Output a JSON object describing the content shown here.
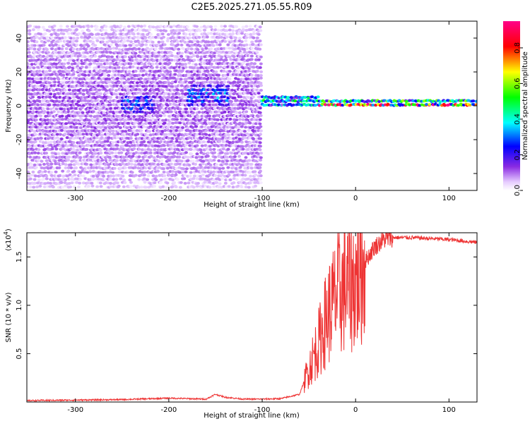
{
  "title": "C2E5.2025.271.05.55.R09",
  "top_panel": {
    "xlabel": "Height of straight line (km)",
    "ylabel": "Frequency (Hz)",
    "x_ticks": [
      "-300",
      "-200",
      "-100",
      "0",
      "100"
    ],
    "y_ticks": [
      "40",
      "20",
      "0",
      "-20",
      "-40"
    ],
    "colorbar": {
      "label": "Normalized spectral amplitude",
      "ticks": [
        "0.0",
        "0.2",
        "0.4",
        "0.6",
        "0.8"
      ],
      "colormap": [
        "#ffffff",
        "#8a2be2",
        "#0000ff",
        "#00ffff",
        "#00ff00",
        "#ffff00",
        "#ff0000",
        "#ff0088"
      ]
    }
  },
  "bottom_panel": {
    "xlabel": "Height of straight line (km)",
    "ylabel": "SNR (10 * v/v)",
    "multiplier": "(x10",
    "multiplier_exp": "4",
    "multiplier_close": ")",
    "x_ticks": [
      "-300",
      "-200",
      "-100",
      "0",
      "100"
    ],
    "y_ticks": [
      "1.5",
      "1.0",
      "0.5"
    ],
    "line_color": "#ee3333"
  },
  "chart_data": [
    {
      "type": "heatmap",
      "title": "C2E5.2025.271.05.55.R09",
      "xlabel": "Height of straight line (km)",
      "ylabel": "Frequency (Hz)",
      "xlim": [
        -352,
        130
      ],
      "ylim": [
        -50,
        50
      ],
      "z_label": "Normalized spectral amplitude",
      "z_range": [
        0.0,
        0.95
      ],
      "features": [
        {
          "x_range": [
            -352,
            -100
          ],
          "freq_center": 0,
          "freq_halfwidth": 48,
          "amplitude": 0.1
        },
        {
          "x_range": [
            -250,
            -215
          ],
          "freq_center": 1,
          "freq_halfwidth": 6,
          "amplitude": 0.25
        },
        {
          "x_range": [
            -180,
            -135
          ],
          "freq_center": 6,
          "freq_halfwidth": 6,
          "amplitude": 0.28
        },
        {
          "x_range": [
            -100,
            -40
          ],
          "freq_center": 3,
          "freq_halfwidth": 4,
          "amplitude": 0.4
        },
        {
          "x_range": [
            -40,
            130
          ],
          "freq_center": 1,
          "freq_halfwidth": 2,
          "amplitude": 0.75
        },
        {
          "x_range": [
            90,
            100
          ],
          "freq_center": 1,
          "freq_halfwidth": 2,
          "amplitude": 0.9
        }
      ]
    },
    {
      "type": "line",
      "xlabel": "Height of straight line (km)",
      "ylabel": "SNR (10 * v/v)",
      "xlim": [
        -352,
        130
      ],
      "ylim": [
        0,
        17500
      ],
      "x": [
        -352,
        -300,
        -250,
        -200,
        -160,
        -150,
        -140,
        -120,
        -100,
        -80,
        -60,
        -50,
        -40,
        -30,
        -20,
        -10,
        0,
        10,
        20,
        30,
        40,
        60,
        80,
        100,
        120,
        130
      ],
      "values": [
        150,
        200,
        250,
        400,
        300,
        800,
        500,
        300,
        300,
        350,
        800,
        3500,
        6000,
        9000,
        11000,
        12000,
        12500,
        14500,
        16000,
        16800,
        17000,
        17000,
        16900,
        16800,
        16600,
        16500
      ]
    }
  ]
}
